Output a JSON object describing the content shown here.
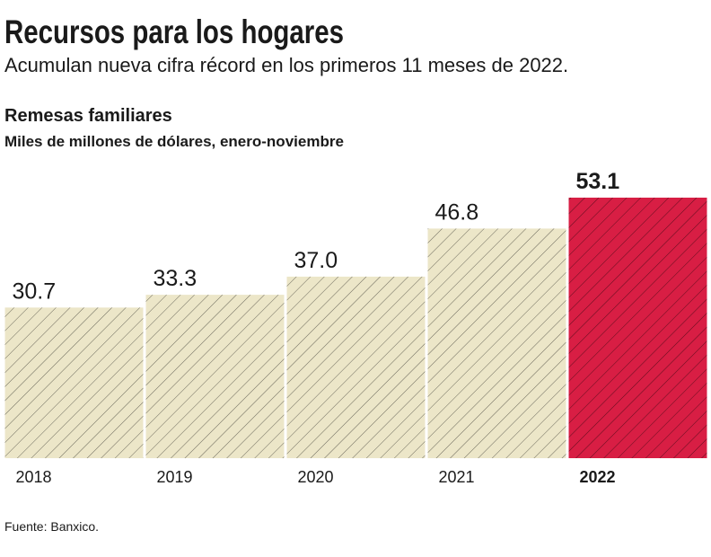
{
  "chart_data": {
    "type": "bar",
    "title": "Recursos para los hogares",
    "subtitle": "Acumulan nueva cifra récord en los primeros 11 meses de 2022.",
    "chart_title": "Remesas familiares",
    "chart_subtitle": "Miles de millones de dólares, enero-noviembre",
    "source": "Fuente: Banxico.",
    "categories": [
      "2018",
      "2019",
      "2020",
      "2021",
      "2022"
    ],
    "values": [
      30.7,
      33.3,
      37.0,
      46.8,
      53.1
    ],
    "value_labels": [
      "30.7",
      "33.3",
      "37.0",
      "46.8",
      "53.1"
    ],
    "colors": [
      "#ece6c8",
      "#ece6c8",
      "#ece6c8",
      "#ece6c8",
      "#d81e44"
    ],
    "bold_labels": [
      false,
      false,
      false,
      false,
      true
    ]
  }
}
